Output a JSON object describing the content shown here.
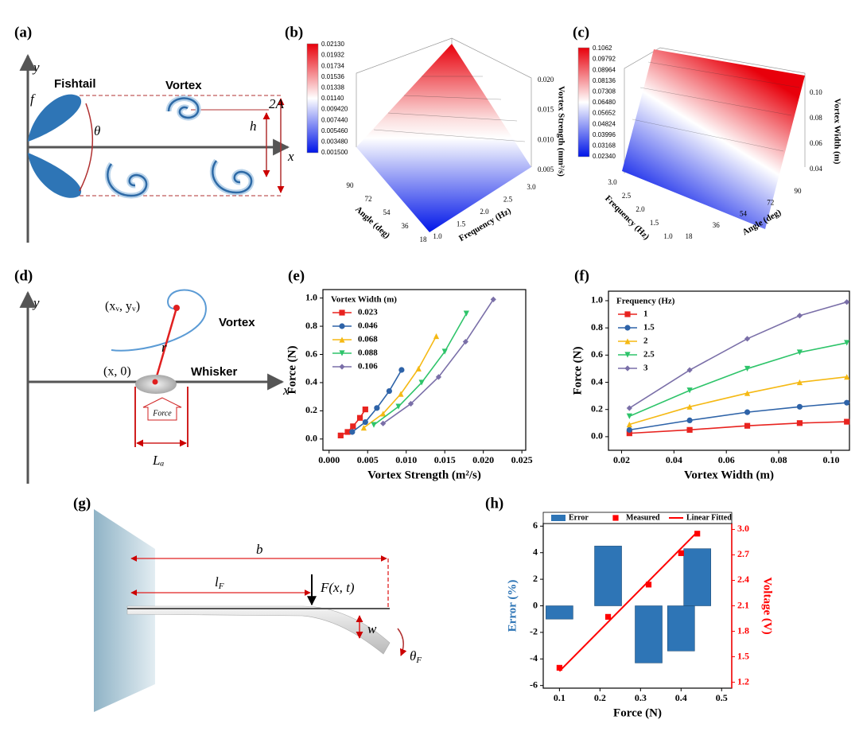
{
  "panel_labels": [
    "(a)",
    "(b)",
    "(c)",
    "(d)",
    "(e)",
    "(f)",
    "(g)",
    "(h)"
  ],
  "diagram_a": {
    "y_axis": "y",
    "x_axis": "x",
    "fishtail": "Fishtail",
    "vortex": "Vortex",
    "frequency": "f",
    "angle": "θ",
    "height": "h",
    "amplitude": "2A"
  },
  "surface_b": {
    "colorbar_ticks": [
      "0.02130",
      "0.01932",
      "0.01734",
      "0.01536",
      "0.01338",
      "0.01140",
      "0.009420",
      "0.007440",
      "0.005460",
      "0.003480",
      "0.001500"
    ],
    "z_label": "Vortex Strength (mm²/s)",
    "z_ticks": [
      "0.005",
      "0.010",
      "0.015",
      "0.020"
    ],
    "x_label": "Frequency (Hz)",
    "x_ticks": [
      "1.0",
      "1.5",
      "2.0",
      "2.5",
      "3.0"
    ],
    "y_label": "Angle (deg)",
    "y_ticks": [
      "18",
      "36",
      "54",
      "72",
      "90"
    ]
  },
  "surface_c": {
    "colorbar_ticks": [
      "0.1062",
      "0.09792",
      "0.08964",
      "0.08136",
      "0.07308",
      "0.06480",
      "0.05652",
      "0.04824",
      "0.03996",
      "0.03168",
      "0.02340"
    ],
    "z_label": "Vortex Width (m)",
    "z_ticks": [
      "0.04",
      "0.06",
      "0.08",
      "0.10"
    ],
    "x_label": "Frequency (Hz)",
    "x_ticks": [
      "1.0",
      "1.5",
      "2.0",
      "2.5",
      "3.0"
    ],
    "y_label": "Angle (deg)",
    "y_ticks": [
      "18",
      "36",
      "54",
      "72",
      "90"
    ]
  },
  "diagram_d": {
    "y_axis": "y",
    "x_axis": "x",
    "vortex_position": "(xᵥ, yᵥ)",
    "vortex": "Vortex",
    "distance": "r",
    "whisker_position": "(x, 0)",
    "whisker": "Whisker",
    "force": "Force",
    "length": "Lₐ"
  },
  "diagram_g": {
    "length": "b",
    "force_position": {
      "main": "l",
      "sub": "F"
    },
    "force": "F(x, t)",
    "deflection": "w",
    "angle": {
      "main": "θ",
      "sub": "F"
    }
  },
  "chart_data": [
    {
      "type": "line",
      "xlabel": "Vortex Strength (m²/s)",
      "ylabel": "Force (N)",
      "legend_title": "Vortex Width (m)",
      "xlim": [
        -0.0008,
        0.0255
      ],
      "ylim": [
        -0.08,
        1.06
      ],
      "xticks": [
        {
          "value": 0,
          "label": "0.000"
        },
        {
          "value": 0.005,
          "label": "0.005"
        },
        {
          "value": 0.01,
          "label": "0.010"
        },
        {
          "value": 0.015,
          "label": "0.015"
        },
        {
          "value": 0.02,
          "label": "0.020"
        },
        {
          "value": 0.025,
          "label": "0.025"
        }
      ],
      "yticks": [
        {
          "value": 0,
          "label": "0.0"
        },
        0.2,
        0.4,
        0.6,
        0.8,
        {
          "value": 1,
          "label": "1.0"
        }
      ],
      "series": [
        {
          "name": "0.023",
          "color": "#e8231f",
          "marker": "square",
          "x": [
            0.0015,
            0.0024,
            0.0031,
            0.004,
            0.0047
          ],
          "values": [
            0.025,
            0.05,
            0.09,
            0.15,
            0.21
          ]
        },
        {
          "name": "0.046",
          "color": "#2e63a8",
          "marker": "circle",
          "x": [
            0.003,
            0.0047,
            0.0062,
            0.0078,
            0.0094
          ],
          "values": [
            0.05,
            0.12,
            0.22,
            0.34,
            0.49
          ]
        },
        {
          "name": "0.068",
          "color": "#f5b914",
          "marker": "triangle",
          "x": [
            0.0045,
            0.007,
            0.0093,
            0.0116,
            0.0139
          ],
          "values": [
            0.08,
            0.18,
            0.32,
            0.5,
            0.73
          ]
        },
        {
          "name": "0.088",
          "color": "#2ec46a",
          "marker": "triangle-down",
          "x": [
            0.0058,
            0.009,
            0.012,
            0.015,
            0.0178
          ],
          "values": [
            0.1,
            0.23,
            0.4,
            0.62,
            0.89
          ]
        },
        {
          "name": "0.106",
          "color": "#7a6fa8",
          "marker": "diamond",
          "x": [
            0.007,
            0.0106,
            0.0142,
            0.0177,
            0.0213
          ],
          "values": [
            0.11,
            0.25,
            0.44,
            0.69,
            0.99
          ]
        }
      ]
    },
    {
      "type": "line",
      "xlabel": "Vortex Width (m)",
      "ylabel": "Force (N)",
      "legend_title": "Frequency (Hz)",
      "xlim": [
        0.015,
        0.107
      ],
      "ylim": [
        -0.1,
        1.07
      ],
      "xticks": [
        0.02,
        0.04,
        0.06,
        0.08,
        {
          "value": 0.1,
          "label": "0.10"
        }
      ],
      "yticks": [
        {
          "value": 0,
          "label": "0.0"
        },
        0.2,
        0.4,
        0.6,
        0.8,
        {
          "value": 1,
          "label": "1.0"
        }
      ],
      "x": [
        0.023,
        0.046,
        0.068,
        0.088,
        0.106
      ],
      "series": [
        {
          "name": "1",
          "color": "#e8231f",
          "marker": "square",
          "values": [
            0.025,
            0.05,
            0.08,
            0.1,
            0.11
          ]
        },
        {
          "name": "1.5",
          "color": "#2e63a8",
          "marker": "circle",
          "values": [
            0.05,
            0.12,
            0.18,
            0.22,
            0.25
          ]
        },
        {
          "name": "2",
          "color": "#f5b914",
          "marker": "triangle",
          "values": [
            0.09,
            0.22,
            0.32,
            0.4,
            0.44
          ]
        },
        {
          "name": "2.5",
          "color": "#2ec46a",
          "marker": "triangle-down",
          "values": [
            0.15,
            0.34,
            0.5,
            0.62,
            0.69
          ]
        },
        {
          "name": "3",
          "color": "#7a6fa8",
          "marker": "diamond",
          "values": [
            0.21,
            0.49,
            0.72,
            0.89,
            0.99
          ]
        }
      ]
    },
    {
      "type": "combo",
      "xlabel": "Force (N)",
      "ylabel": "Error (%)",
      "y2label": "Voltage (V)",
      "ylabel_color": "#2e75b6",
      "y2_color": "#ff0000",
      "xlim": [
        0.06,
        0.525
      ],
      "ylim": [
        -6.2,
        6.2
      ],
      "y2lim": [
        1.13,
        3.07
      ],
      "xticks": [
        0.1,
        0.2,
        0.3,
        0.4,
        0.5
      ],
      "yticks": [
        -6,
        -4,
        -2,
        0,
        2,
        4,
        6
      ],
      "y2ticks": [
        1.2,
        1.5,
        1.8,
        2.1,
        2.4,
        2.7,
        {
          "value": 3,
          "label": "3.0"
        }
      ],
      "series": [
        {
          "name": "Error",
          "kind": "bar",
          "color": "#2e75b6",
          "x": [
            0.1,
            0.22,
            0.32,
            0.4,
            0.44
          ],
          "values": [
            -1,
            4.5,
            -4.3,
            -3.4,
            4.3
          ]
        },
        {
          "name": "Measured",
          "kind": "scatter",
          "axis": "y2",
          "color": "#ff0000",
          "marker": "square",
          "x": [
            0.1,
            0.22,
            0.32,
            0.4,
            0.44
          ],
          "values": [
            1.37,
            1.97,
            2.35,
            2.72,
            2.95
          ]
        },
        {
          "name": "Linear Fitted",
          "kind": "line",
          "axis": "y2",
          "color": "#ff0000",
          "x": [
            0.1,
            0.44
          ],
          "values": [
            1.33,
            2.97
          ]
        }
      ]
    }
  ]
}
